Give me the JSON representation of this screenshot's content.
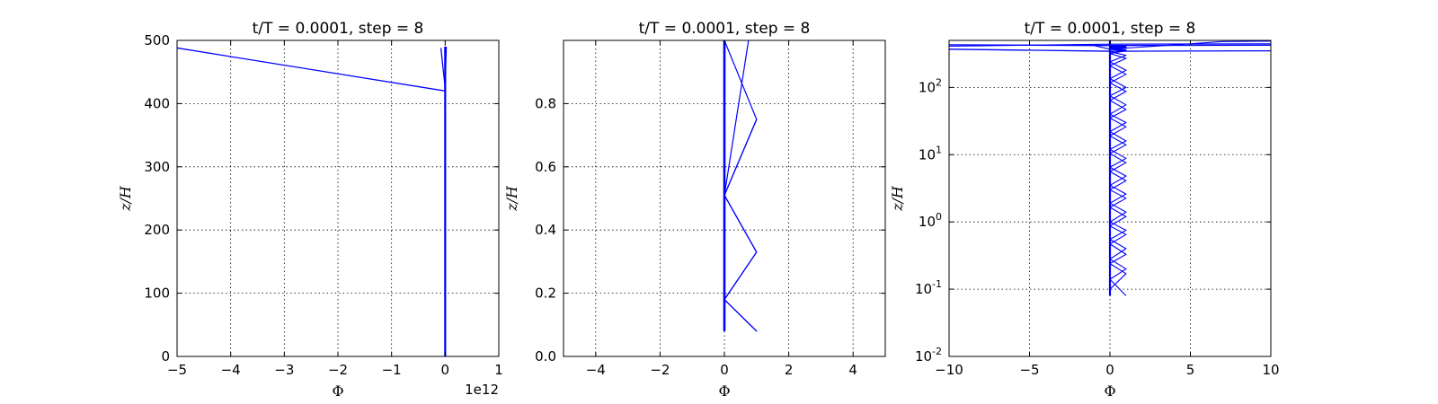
{
  "chart_data": [
    {
      "type": "line",
      "title": "t/T = 0.0001, step = 8",
      "xlabel": "Φ",
      "ylabel": "z/H",
      "x_offset_label": "1e12",
      "xlim": [
        -5,
        1
      ],
      "ylim": [
        0,
        500
      ],
      "xticks": [
        -5,
        -4,
        -3,
        -2,
        -1,
        0,
        1
      ],
      "xtick_labels": [
        "−5",
        "−4",
        "−3",
        "−2",
        "−1",
        "0",
        "1"
      ],
      "yticks": [
        0,
        100,
        200,
        300,
        400,
        500
      ],
      "ytick_labels": [
        "0",
        "100",
        "200",
        "300",
        "400",
        "500"
      ],
      "yscale": "linear",
      "grid": true,
      "color": "#0000ff",
      "series": [
        {
          "x": [
            0,
            0
          ],
          "y": [
            0.08,
            490
          ],
          "width": 2.2
        },
        {
          "x": [
            -5,
            0,
            0
          ],
          "y": [
            488,
            420,
            490
          ],
          "width": 1.3
        },
        {
          "x": [
            -0.08,
            0,
            0.02
          ],
          "y": [
            488,
            425,
            490
          ],
          "width": 1.3
        }
      ]
    },
    {
      "type": "line",
      "title": "t/T = 0.0001, step = 8",
      "xlabel": "Φ",
      "ylabel": "z/H",
      "xlim": [
        -5,
        5
      ],
      "ylim": [
        0,
        1
      ],
      "xticks": [
        -4,
        -2,
        0,
        2,
        4
      ],
      "xtick_labels": [
        "−4",
        "−2",
        "0",
        "2",
        "4"
      ],
      "yticks": [
        0,
        0.2,
        0.4,
        0.6,
        0.8
      ],
      "ytick_labels": [
        "0.0",
        "0.2",
        "0.4",
        "0.6",
        "0.8"
      ],
      "yscale": "linear",
      "grid": true,
      "color": "#0000ff",
      "series": [
        {
          "x": [
            0,
            0
          ],
          "y": [
            0.08,
            1
          ],
          "width": 2.6
        },
        {
          "x": [
            1,
            0,
            1,
            0,
            1,
            0,
            1,
            0,
            0.75
          ],
          "y": [
            0.08,
            0.18,
            0.33,
            0.51,
            0.75,
            1.0,
            0.75,
            0.51,
            1.0
          ],
          "width": 1.2
        },
        {
          "x": [
            1,
            0,
            1,
            0,
            1,
            0,
            1,
            0,
            0
          ],
          "y": [
            0.33,
            0.18,
            0.08,
            0.18,
            0.33,
            0.51,
            0.75,
            0.51,
            0.33
          ],
          "width": 1.2
        }
      ]
    },
    {
      "type": "line",
      "title": "t/T = 0.0001, step = 8",
      "xlabel": "Φ",
      "ylabel": "z/H",
      "xlim": [
        -10,
        10
      ],
      "ylim": [
        0.01,
        500
      ],
      "xticks": [
        -10,
        -5,
        0,
        5,
        10
      ],
      "xtick_labels": [
        "−10",
        "−5",
        "0",
        "5",
        "10"
      ],
      "yticks": [
        0.01,
        0.1,
        1,
        10,
        100
      ],
      "ytick_labels": [
        {
          "base": "10",
          "exp": "-2"
        },
        {
          "base": "10",
          "exp": "-1"
        },
        {
          "base": "10",
          "exp": "0"
        },
        {
          "base": "10",
          "exp": "1"
        },
        {
          "base": "10",
          "exp": "2"
        }
      ],
      "yscale": "log",
      "grid": true,
      "color": "#0000ff",
      "series": [
        {
          "x": [
            0,
            0
          ],
          "y": [
            0.08,
            500
          ],
          "width": 2.2
        },
        {
          "x": [
            1,
            0,
            1,
            0,
            1,
            0,
            1,
            0,
            1,
            0,
            1,
            0,
            1,
            0,
            1,
            0,
            1,
            0,
            1,
            0,
            1,
            0,
            1,
            0,
            1,
            0,
            1,
            0,
            1,
            0,
            1,
            0,
            1,
            0,
            1,
            0,
            1
          ],
          "y": [
            0.08,
            0.14,
            0.2,
            0.28,
            0.4,
            0.55,
            0.75,
            1.0,
            1.4,
            1.9,
            2.6,
            3.5,
            4.8,
            6.5,
            8.8,
            12,
            16,
            22,
            30,
            40,
            55,
            75,
            100,
            135,
            180,
            240,
            300,
            340,
            360,
            375,
            385,
            392,
            398,
            402,
            405,
            408,
            410
          ],
          "width": 1.1
        },
        {
          "x": [
            0,
            1,
            0,
            1,
            0,
            1,
            0,
            1,
            0,
            1,
            0,
            1,
            0,
            1,
            0,
            1,
            0,
            1,
            0,
            1,
            0,
            1,
            0,
            1,
            0,
            1,
            0,
            1,
            0,
            1,
            0,
            1,
            0,
            1,
            0,
            1
          ],
          "y": [
            0.1,
            0.17,
            0.24,
            0.33,
            0.47,
            0.65,
            0.87,
            1.2,
            1.65,
            2.25,
            3.0,
            4.1,
            5.6,
            7.6,
            10.4,
            14,
            19,
            26,
            35,
            47,
            64,
            87,
            117,
            157,
            210,
            270,
            320,
            350,
            368,
            380,
            389,
            395,
            400,
            404,
            407,
            409
          ],
          "width": 1.1
        },
        {
          "x": [
            -10,
            0,
            10
          ],
          "y": [
            370,
            345,
            350
          ],
          "width": 1.3
        },
        {
          "x": [
            -10,
            -1,
            10
          ],
          "y": [
            430,
            420,
            425
          ],
          "width": 1.3
        },
        {
          "x": [
            -10,
            0,
            10
          ],
          "y": [
            410,
            440,
            445
          ],
          "width": 1.1
        },
        {
          "x": [
            -1,
            0,
            7,
            10
          ],
          "y": [
            420,
            370,
            480,
            488
          ],
          "width": 1.1
        }
      ]
    }
  ]
}
